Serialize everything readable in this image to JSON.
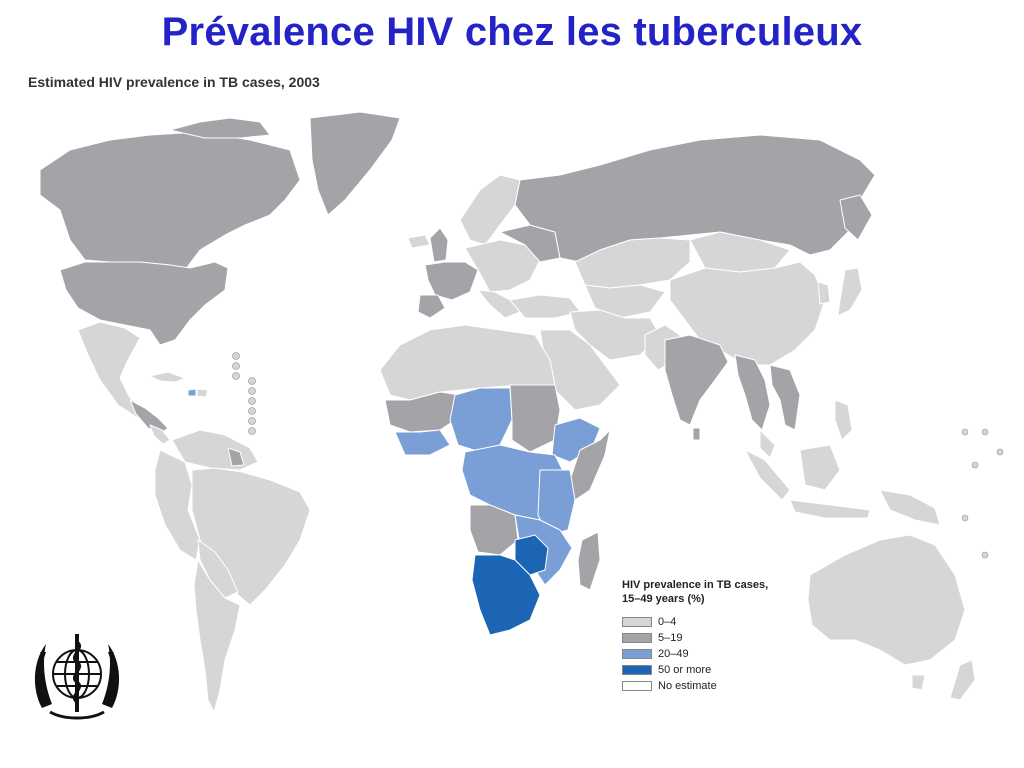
{
  "slide": {
    "title": "Prévalence HIV chez les tuberculeux"
  },
  "map": {
    "subtitle": "Estimated HIV prevalence in TB cases, 2003",
    "colors": {
      "ocean": "#ffffff",
      "border": "#ffffff",
      "class_0_4": "#d6d6d6",
      "class_5_19": "#a3a3a8",
      "class_20_49": "#7a9fd6",
      "class_50_plus": "#1c64b4",
      "no_estimate": "#ffffff"
    }
  },
  "legend": {
    "title_line1": "HIV prevalence in TB cases,",
    "title_line2": "15–49 years (%)",
    "items": [
      {
        "label": "0–4",
        "color": "#d6d6d6"
      },
      {
        "label": "5–19",
        "color": "#a3a3a8"
      },
      {
        "label": "20–49",
        "color": "#7a9fd6"
      },
      {
        "label": "50 or more",
        "color": "#1c64b4"
      },
      {
        "label": "No estimate",
        "color": "#ffffff"
      }
    ]
  },
  "logo": {
    "icon": "who-emblem-icon"
  }
}
